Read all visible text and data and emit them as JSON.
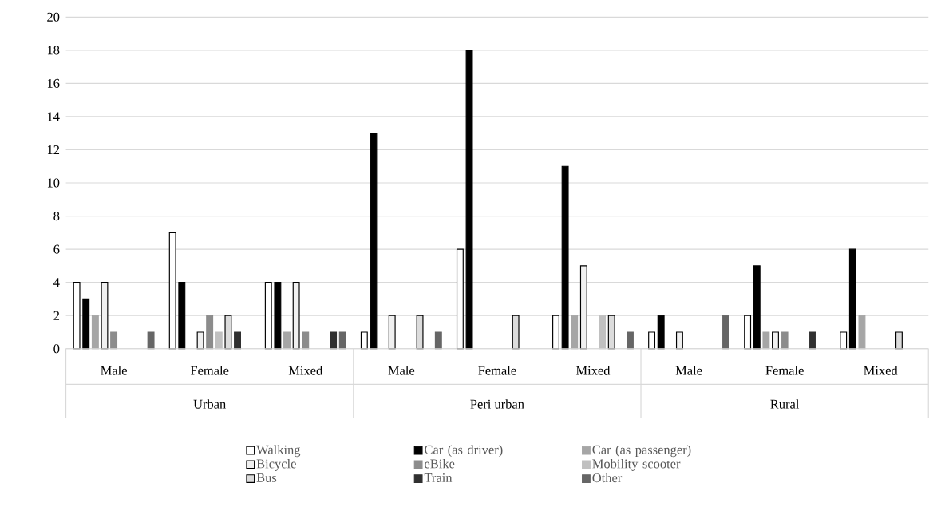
{
  "chart_data": {
    "type": "bar",
    "categories": [
      "Male",
      "Female",
      "Mixed",
      "Male",
      "Female",
      "Mixed",
      "Male",
      "Female",
      "Mixed"
    ],
    "annotations": [
      "Urban",
      "Peri urban",
      "Rural"
    ],
    "series": [
      {
        "name": "Walking",
        "color": "#ffffff",
        "values": [
          4,
          7,
          4,
          1,
          6,
          2,
          1,
          2,
          1
        ]
      },
      {
        "name": "Car (as driver)",
        "color": "#000000",
        "values": [
          3,
          4,
          4,
          13,
          18,
          11,
          2,
          5,
          6
        ]
      },
      {
        "name": "Car (as passenger)",
        "color": "#a6a6a6",
        "values": [
          2,
          0,
          1,
          0,
          0,
          2,
          0,
          1,
          2
        ]
      },
      {
        "name": "Bicycle",
        "color": "#f0f0f0",
        "values": [
          4,
          1,
          4,
          2,
          0,
          5,
          1,
          1,
          0
        ]
      },
      {
        "name": "eBike",
        "color": "#8c8c8c",
        "values": [
          1,
          2,
          1,
          0,
          0,
          0,
          0,
          1,
          0
        ]
      },
      {
        "name": "Mobility scooter",
        "color": "#c0c0c0",
        "values": [
          0,
          1,
          0,
          0,
          0,
          2,
          0,
          0,
          0
        ]
      },
      {
        "name": "Bus",
        "color": "#dcdcdc",
        "values": [
          0,
          2,
          0,
          2,
          2,
          2,
          0,
          0,
          1
        ]
      },
      {
        "name": "Train",
        "color": "#303030",
        "values": [
          0,
          1,
          1,
          0,
          0,
          0,
          0,
          1,
          0
        ]
      },
      {
        "name": "Other",
        "color": "#666666",
        "values": [
          1,
          0,
          1,
          1,
          0,
          1,
          2,
          0,
          0
        ]
      }
    ],
    "ylim": [
      0,
      20
    ],
    "yticks": [
      0,
      2,
      4,
      6,
      8,
      10,
      12,
      14,
      16,
      18,
      20
    ],
    "grid": "y",
    "legend": "bottom"
  }
}
